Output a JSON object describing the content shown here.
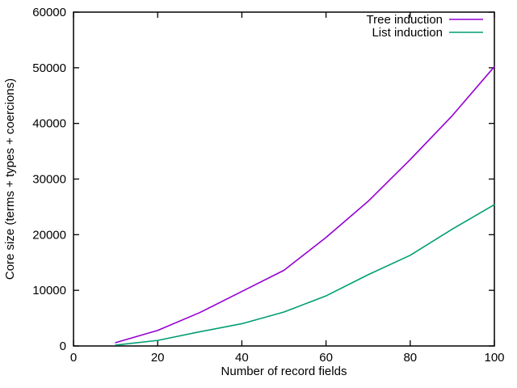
{
  "window": {
    "background": "#ffffff",
    "foreground": "#000000"
  },
  "chart_data": {
    "type": "line",
    "title": "",
    "xlabel": "Number of record fields",
    "ylabel": "Core size (terms + types + coercions)",
    "xlim": [
      0,
      100
    ],
    "ylim": [
      0,
      60000
    ],
    "xticks": [
      0,
      20,
      40,
      60,
      80,
      100
    ],
    "yticks": [
      0,
      10000,
      20000,
      30000,
      40000,
      50000,
      60000
    ],
    "grid": false,
    "legend_position": "top-right-inside",
    "x": [
      10,
      20,
      30,
      40,
      50,
      60,
      70,
      80,
      90,
      100
    ],
    "series": [
      {
        "name": "Tree induction",
        "color": "#9400d3",
        "values": [
          600,
          2800,
          6000,
          9800,
          13600,
          19500,
          26000,
          33500,
          41400,
          50200
        ]
      },
      {
        "name": "List induction",
        "color": "#009e73",
        "values": [
          150,
          1000,
          2550,
          4000,
          6100,
          9000,
          12800,
          16300,
          21000,
          25400
        ]
      }
    ]
  }
}
